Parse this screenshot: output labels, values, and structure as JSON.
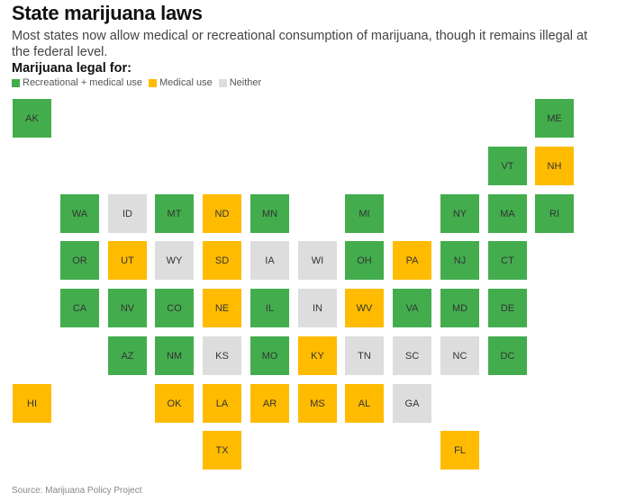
{
  "title": "State marijuana laws",
  "subtitle": "Most states now allow medical or recreational consumption of marijuana, though it remains illegal at the federal level.",
  "legend": {
    "title": "Marijuana legal for:",
    "items": [
      {
        "key": "rec",
        "label": "Recreational + medical use",
        "color": "#43ad4e"
      },
      {
        "key": "med",
        "label": "Medical use",
        "color": "#ffbb00"
      },
      {
        "key": "none",
        "label": "Neither",
        "color": "#dddddd"
      }
    ]
  },
  "source": "Source: Marijuana Policy Project",
  "chart_data": {
    "type": "tile-map",
    "title": "State marijuana laws",
    "categories": {
      "rec": "Recreational + medical use",
      "med": "Medical use",
      "none": "Neither"
    },
    "states": [
      {
        "abbr": "AK",
        "status": "rec",
        "col": 0,
        "row": 0
      },
      {
        "abbr": "ME",
        "status": "rec",
        "col": 11,
        "row": 0
      },
      {
        "abbr": "VT",
        "status": "rec",
        "col": 10,
        "row": 1
      },
      {
        "abbr": "NH",
        "status": "med",
        "col": 11,
        "row": 1
      },
      {
        "abbr": "WA",
        "status": "rec",
        "col": 1,
        "row": 2
      },
      {
        "abbr": "ID",
        "status": "none",
        "col": 2,
        "row": 2
      },
      {
        "abbr": "MT",
        "status": "rec",
        "col": 3,
        "row": 2
      },
      {
        "abbr": "ND",
        "status": "med",
        "col": 4,
        "row": 2
      },
      {
        "abbr": "MN",
        "status": "rec",
        "col": 5,
        "row": 2
      },
      {
        "abbr": "MI",
        "status": "rec",
        "col": 7,
        "row": 2
      },
      {
        "abbr": "NY",
        "status": "rec",
        "col": 9,
        "row": 2
      },
      {
        "abbr": "MA",
        "status": "rec",
        "col": 10,
        "row": 2
      },
      {
        "abbr": "RI",
        "status": "rec",
        "col": 11,
        "row": 2
      },
      {
        "abbr": "OR",
        "status": "rec",
        "col": 1,
        "row": 3
      },
      {
        "abbr": "UT",
        "status": "med",
        "col": 2,
        "row": 3
      },
      {
        "abbr": "WY",
        "status": "none",
        "col": 3,
        "row": 3
      },
      {
        "abbr": "SD",
        "status": "med",
        "col": 4,
        "row": 3
      },
      {
        "abbr": "IA",
        "status": "none",
        "col": 5,
        "row": 3
      },
      {
        "abbr": "WI",
        "status": "none",
        "col": 6,
        "row": 3
      },
      {
        "abbr": "OH",
        "status": "rec",
        "col": 7,
        "row": 3
      },
      {
        "abbr": "PA",
        "status": "med",
        "col": 8,
        "row": 3
      },
      {
        "abbr": "NJ",
        "status": "rec",
        "col": 9,
        "row": 3
      },
      {
        "abbr": "CT",
        "status": "rec",
        "col": 10,
        "row": 3
      },
      {
        "abbr": "CA",
        "status": "rec",
        "col": 1,
        "row": 4
      },
      {
        "abbr": "NV",
        "status": "rec",
        "col": 2,
        "row": 4
      },
      {
        "abbr": "CO",
        "status": "rec",
        "col": 3,
        "row": 4
      },
      {
        "abbr": "NE",
        "status": "med",
        "col": 4,
        "row": 4
      },
      {
        "abbr": "IL",
        "status": "rec",
        "col": 5,
        "row": 4
      },
      {
        "abbr": "IN",
        "status": "none",
        "col": 6,
        "row": 4
      },
      {
        "abbr": "WV",
        "status": "med",
        "col": 7,
        "row": 4
      },
      {
        "abbr": "VA",
        "status": "rec",
        "col": 8,
        "row": 4
      },
      {
        "abbr": "MD",
        "status": "rec",
        "col": 9,
        "row": 4
      },
      {
        "abbr": "DE",
        "status": "rec",
        "col": 10,
        "row": 4
      },
      {
        "abbr": "AZ",
        "status": "rec",
        "col": 2,
        "row": 5
      },
      {
        "abbr": "NM",
        "status": "rec",
        "col": 3,
        "row": 5
      },
      {
        "abbr": "KS",
        "status": "none",
        "col": 4,
        "row": 5
      },
      {
        "abbr": "MO",
        "status": "rec",
        "col": 5,
        "row": 5
      },
      {
        "abbr": "KY",
        "status": "med",
        "col": 6,
        "row": 5
      },
      {
        "abbr": "TN",
        "status": "none",
        "col": 7,
        "row": 5
      },
      {
        "abbr": "SC",
        "status": "none",
        "col": 8,
        "row": 5
      },
      {
        "abbr": "NC",
        "status": "none",
        "col": 9,
        "row": 5
      },
      {
        "abbr": "DC",
        "status": "rec",
        "col": 10,
        "row": 5
      },
      {
        "abbr": "HI",
        "status": "med",
        "col": 0,
        "row": 6
      },
      {
        "abbr": "OK",
        "status": "med",
        "col": 3,
        "row": 6
      },
      {
        "abbr": "LA",
        "status": "med",
        "col": 4,
        "row": 6
      },
      {
        "abbr": "AR",
        "status": "med",
        "col": 5,
        "row": 6
      },
      {
        "abbr": "MS",
        "status": "med",
        "col": 6,
        "row": 6
      },
      {
        "abbr": "AL",
        "status": "med",
        "col": 7,
        "row": 6
      },
      {
        "abbr": "GA",
        "status": "none",
        "col": 8,
        "row": 6
      },
      {
        "abbr": "TX",
        "status": "med",
        "col": 4,
        "row": 7
      },
      {
        "abbr": "FL",
        "status": "med",
        "col": 9,
        "row": 7
      }
    ]
  }
}
